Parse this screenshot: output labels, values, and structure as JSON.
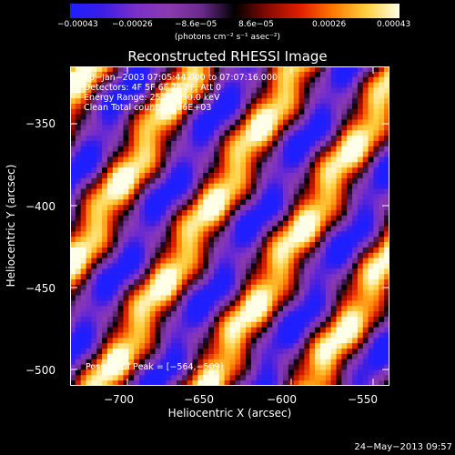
{
  "colorbar": {
    "ticks": [
      "−0.00043",
      "−0.00026",
      "−8.6e−05",
      "8.6e−05",
      "0.00026",
      "0.00043"
    ],
    "units": "(photons cm⁻² s⁻¹ asec⁻²)"
  },
  "chart_data": {
    "type": "heatmap",
    "title": "Reconstructed RHESSI Image",
    "xlabel": "Heliocentric X (arcsec)",
    "ylabel": "Heliocentric Y (arcsec)",
    "xlim": [
      -735,
      -540
    ],
    "ylim": [
      -510,
      -315
    ],
    "x_ticks": [
      "−700",
      "−650",
      "−600",
      "−550"
    ],
    "y_ticks": [
      "−350",
      "−400",
      "−450",
      "−500"
    ],
    "colorbar_range": [
      -0.00043,
      0.00043
    ],
    "annotations": [
      "10−Jan−2003 07:05:44.000 to 07:07:16.000",
      "Detectors: 4F 5F 6F 7F 8F, Att 0",
      "Energy Range: 25.0 − 50.0 keV",
      "Clean    Total counts: 1.26E+03"
    ],
    "peak_label": "Position of Peak = [−564,−509]"
  },
  "footer_date": "24−May−2013 09:57",
  "colors": {
    "background": "#000000",
    "text": "#ffffff"
  }
}
